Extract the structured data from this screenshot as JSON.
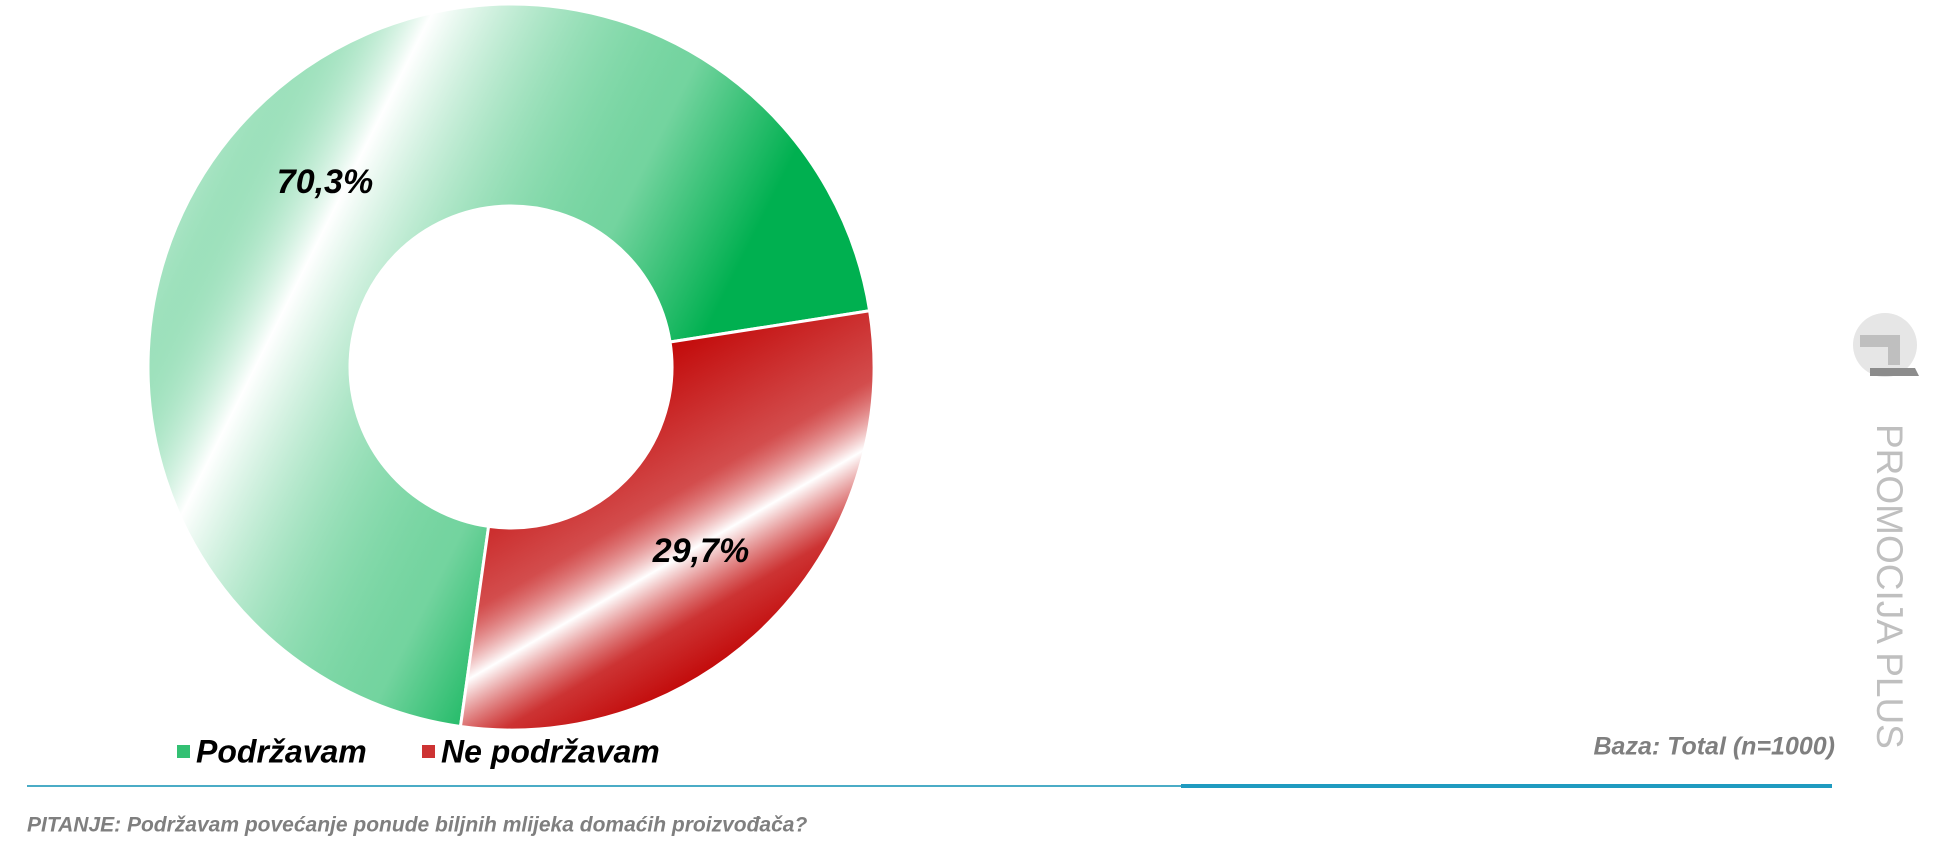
{
  "chart_data": {
    "type": "donut",
    "categories": [
      "Podržavam",
      "Ne podržavam"
    ],
    "values": [
      70.3,
      29.7
    ],
    "value_labels": [
      "70,3%",
      "29,7%"
    ],
    "colors": [
      "#00b050",
      "#c00000"
    ],
    "legend": "bottom",
    "note": "Baza: Total (n=1000)",
    "question": "PITANJE: Podržavam povećanje ponude biljnih mlijeka domaćih proizvođača?"
  },
  "brand": "PROMOCIJA PLUS"
}
